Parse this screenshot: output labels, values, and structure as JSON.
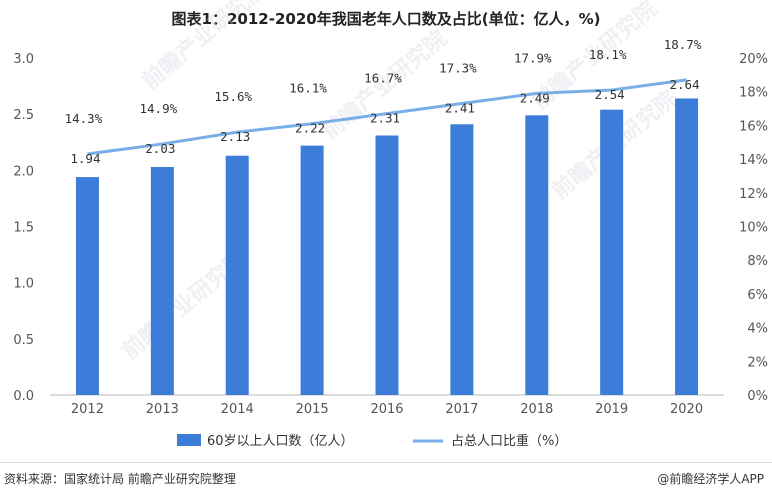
{
  "title": "图表1：2012-2020年我国老年人口数及占比(单位：亿人，%)",
  "source": "资料来源：国家统计局 前瞻产业研究院整理",
  "credit": "@前瞻经济学人APP",
  "watermark": "前瞻产业研究院",
  "colors": {
    "bar": "#3b7dd8",
    "line": "#79aee8",
    "axis": "#bbbbbb"
  },
  "chart_data": {
    "type": "bar",
    "title": "图表1：2012-2020年我国老年人口数及占比(单位：亿人，%)",
    "categories": [
      "2012",
      "2013",
      "2014",
      "2015",
      "2016",
      "2017",
      "2018",
      "2019",
      "2020"
    ],
    "series": [
      {
        "name": "60岁以上人口数（亿人）",
        "type": "bar",
        "axis": "left",
        "values": [
          1.94,
          2.03,
          2.13,
          2.22,
          2.31,
          2.41,
          2.49,
          2.54,
          2.64
        ],
        "labels": [
          "1.94",
          "2.03",
          "2.13",
          "2.22",
          "2.31",
          "2.41",
          "2.49",
          "2.54",
          "2.64"
        ]
      },
      {
        "name": "占总人口比重（%）",
        "type": "line",
        "axis": "right",
        "values": [
          14.3,
          14.9,
          15.6,
          16.1,
          16.7,
          17.3,
          17.9,
          18.1,
          18.7
        ],
        "labels": [
          "14.3%",
          "14.9%",
          "15.6%",
          "16.1%",
          "16.7%",
          "17.3%",
          "17.9%",
          "18.1%",
          "18.7%"
        ]
      }
    ],
    "y_left": {
      "min": 0,
      "max": 3.0,
      "ticks": [
        "0.0",
        "0.5",
        "1.0",
        "1.5",
        "2.0",
        "2.5",
        "3.0"
      ]
    },
    "y_right": {
      "min": 0,
      "max": 20,
      "ticks": [
        "0%",
        "2%",
        "4%",
        "6%",
        "8%",
        "10%",
        "12%",
        "14%",
        "16%",
        "18%",
        "20%"
      ]
    },
    "legend_position": "bottom",
    "grid": false
  }
}
